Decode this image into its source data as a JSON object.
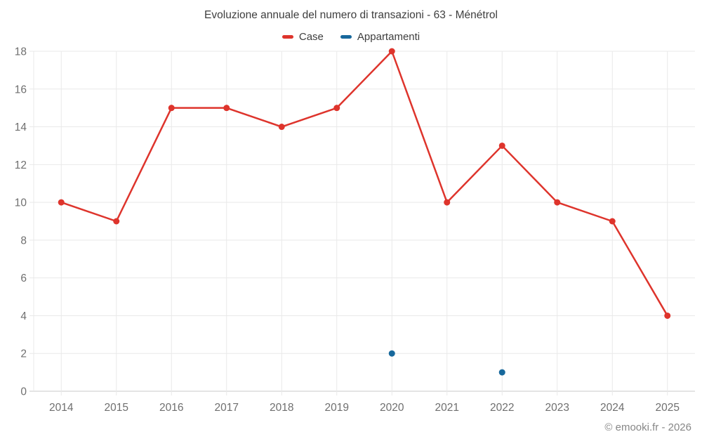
{
  "header": {
    "title": "Evoluzione annuale del numero di transazioni - 63 - Ménétrol"
  },
  "legend": {
    "items": [
      {
        "label": "Case",
        "color": "#de342c"
      },
      {
        "label": "Appartamenti",
        "color": "#17689c"
      }
    ]
  },
  "footer": {
    "credit": "© emooki.fr - 2026"
  },
  "chart_data": {
    "type": "line",
    "title": "Evoluzione annuale del numero di transazioni - 63 - Ménétrol",
    "categories": [
      "2014",
      "2015",
      "2016",
      "2017",
      "2018",
      "2019",
      "2020",
      "2021",
      "2022",
      "2023",
      "2024",
      "2025"
    ],
    "series": [
      {
        "name": "Case",
        "type": "line",
        "color": "#de342c",
        "values": [
          10,
          9,
          15,
          15,
          14,
          15,
          18,
          10,
          13,
          10,
          9,
          4
        ]
      },
      {
        "name": "Appartamenti",
        "type": "scatter",
        "color": "#17689c",
        "values": [
          null,
          null,
          null,
          null,
          null,
          null,
          2,
          null,
          1,
          null,
          null,
          null
        ]
      }
    ],
    "xlabel": "",
    "ylabel": "",
    "ylim": [
      0,
      18
    ],
    "ytick_step": 2,
    "grid": true,
    "legend_position": "top"
  }
}
